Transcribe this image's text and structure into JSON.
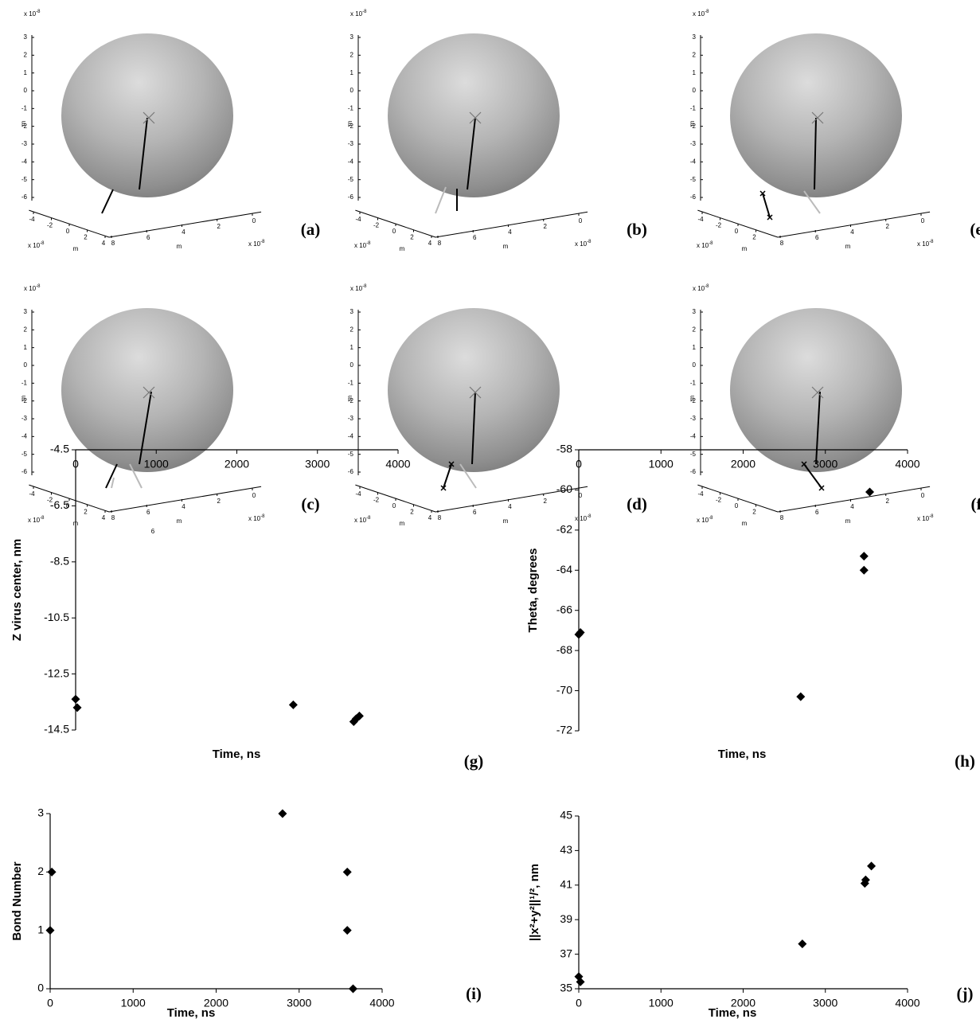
{
  "chart_data": [
    {
      "type": "sphere3d",
      "label": "(a)",
      "zticks": [
        3,
        2,
        1,
        0,
        -1,
        -2,
        -3,
        -4,
        -5,
        -6
      ],
      "xticks": [
        -4,
        -2,
        0,
        2,
        4
      ],
      "yticks": [
        8,
        6,
        4,
        2,
        0
      ],
      "zlabel": "m",
      "xlabel": "m",
      "ylabel": "m",
      "exponent": {
        "base": "x 10",
        "power": -8
      }
    },
    {
      "type": "sphere3d",
      "label": "(b)",
      "zticks": [
        3,
        2,
        1,
        0,
        -1,
        -2,
        -3,
        -4,
        -5,
        -6
      ],
      "xticks": [
        -4,
        -2,
        0,
        2,
        4
      ],
      "yticks": [
        8,
        6,
        4,
        2,
        0
      ],
      "zlabel": "m",
      "xlabel": "m",
      "ylabel": "m",
      "exponent": {
        "base": "x 10",
        "power": -8
      }
    },
    {
      "type": "sphere3d",
      "label": "(e)",
      "zticks": [
        3,
        2,
        1,
        0,
        -1,
        -2,
        -3,
        -4,
        -5,
        -6
      ],
      "xticks": [
        -4,
        -2,
        0,
        2
      ],
      "yticks": [
        8,
        6,
        4,
        2,
        0
      ],
      "zlabel": "m",
      "xlabel": "m",
      "ylabel": "m",
      "exponent": {
        "base": "x 10",
        "power": -8
      }
    },
    {
      "type": "sphere3d",
      "label": "(c)",
      "zticks": [
        3,
        2,
        1,
        0,
        -1,
        -2,
        -3,
        -4,
        -5,
        -6
      ],
      "xticks": [
        -4,
        -2,
        0,
        2,
        4
      ],
      "yticks": [
        8,
        6,
        4,
        2,
        0
      ],
      "zlabel": "m",
      "xlabel": "m",
      "ylabel": "m",
      "exponent": {
        "base": "x 10",
        "power": -8
      },
      "annotation": "6"
    },
    {
      "type": "sphere3d",
      "label": "(d)",
      "zticks": [
        3,
        2,
        1,
        0,
        -1,
        -2,
        -3,
        -4,
        -5,
        -6
      ],
      "xticks": [
        -4,
        -2,
        0,
        2,
        4
      ],
      "yticks": [
        8,
        6,
        4,
        2,
        0
      ],
      "zlabel": "m",
      "xlabel": "m",
      "ylabel": "m",
      "exponent": {
        "base": "x 10",
        "power": -8
      }
    },
    {
      "type": "sphere3d",
      "label": "(f)",
      "zticks": [
        3,
        2,
        1,
        0,
        -1,
        -2,
        -3,
        -4,
        -5,
        -6
      ],
      "xticks": [
        -4,
        -2,
        0,
        2
      ],
      "yticks": [
        8,
        6,
        4,
        2,
        0
      ],
      "zlabel": "m",
      "xlabel": "m",
      "ylabel": "m",
      "exponent": {
        "base": "x 10",
        "power": -8
      }
    },
    {
      "type": "scatter",
      "label": "(g)",
      "xlabel": "Time, ns",
      "ylabel": "Z virus center, nm",
      "x": [
        0,
        20,
        2700,
        3450,
        3480,
        3520
      ],
      "values": [
        -13.4,
        -13.7,
        -13.6,
        -14.2,
        -14.1,
        -14.0
      ],
      "color": "#000000",
      "marker": "diamond",
      "xlim": [
        0,
        4000
      ],
      "xticks": [
        0,
        1000,
        2000,
        3000,
        4000
      ],
      "ylim": [
        -14.5,
        -4.5
      ],
      "yticks": [
        -4.5,
        -6.5,
        -8.5,
        -10.5,
        -12.5,
        -14.5
      ]
    },
    {
      "type": "scatter",
      "label": "(h)",
      "xlabel": "Time, ns",
      "ylabel": "Theta, degrees",
      "x": [
        0,
        20,
        2700,
        3470,
        3470,
        3540
      ],
      "values": [
        -67.2,
        -67.1,
        -70.3,
        -64.0,
        -63.3,
        -60.1
      ],
      "color": "#000000",
      "marker": "diamond",
      "xlim": [
        0,
        4000
      ],
      "xticks": [
        0,
        1000,
        2000,
        3000,
        4000
      ],
      "ylim": [
        -72,
        -58
      ],
      "yticks": [
        -58,
        -60,
        -62,
        -64,
        -66,
        -68,
        -70,
        -72
      ]
    },
    {
      "type": "scatter",
      "label": "(i)",
      "xlabel": "Time, ns",
      "ylabel": "Bond Number",
      "x": [
        0,
        20,
        2800,
        3580,
        3580,
        3650
      ],
      "values": [
        1,
        2,
        3,
        2,
        1,
        0
      ],
      "color": "#000000",
      "marker": "diamond",
      "xlim": [
        0,
        4000
      ],
      "xticks": [
        0,
        1000,
        2000,
        3000,
        4000
      ],
      "ylim": [
        0,
        3
      ],
      "yticks": [
        0,
        1,
        2,
        3
      ]
    },
    {
      "type": "scatter",
      "label": "(j)",
      "xlabel": "Time, ns",
      "ylabel": "||x²+y²||¹/², nm",
      "x": [
        0,
        20,
        2720,
        3480,
        3490,
        3560
      ],
      "values": [
        35.7,
        35.4,
        37.6,
        41.1,
        41.3,
        42.1
      ],
      "color": "#000000",
      "marker": "diamond",
      "xlim": [
        0,
        4000
      ],
      "xticks": [
        0,
        1000,
        2000,
        3000,
        4000
      ],
      "ylim": [
        35,
        45
      ],
      "yticks": [
        35,
        37,
        39,
        41,
        43,
        45
      ]
    }
  ]
}
